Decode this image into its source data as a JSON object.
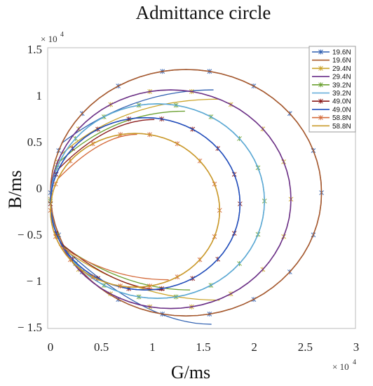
{
  "chart_data": {
    "type": "line",
    "title": "Admittance circle",
    "xlabel": "G/ms",
    "ylabel": "B/ms",
    "x_exponent_label": "× 10",
    "x_exponent_power": "4",
    "y_exponent_label": "× 10",
    "y_exponent_power": "4",
    "xlim": [
      0,
      30000
    ],
    "ylim": [
      -15000,
      15000
    ],
    "x_ticks": [
      0,
      5000,
      10000,
      15000,
      20000,
      25000,
      30000
    ],
    "x_tick_labels": [
      "0",
      "0.5",
      "1",
      "1.5",
      "2",
      "2.5",
      "3"
    ],
    "y_ticks": [
      15000,
      10000,
      5000,
      0,
      -5000,
      -10000,
      -15000
    ],
    "y_tick_labels": [
      "1.5",
      "1",
      "0.5",
      "0",
      "− 0.5",
      "− 1",
      "− 1.5"
    ],
    "grid": false,
    "legend_position": "top-right",
    "series": [
      {
        "name": "19.6N",
        "color": "#2f5fb0",
        "marker": "*",
        "circle": {
          "cx": 13300,
          "cy": -500,
          "r": 13300
        },
        "chord_top": [
          16000,
          10600
        ],
        "chord_bottom": [
          15800,
          -14700
        ]
      },
      {
        "name": "19.6N",
        "color": "#a8582a",
        "marker": "",
        "circle": {
          "cx": 13300,
          "cy": -500,
          "r": 13300
        }
      },
      {
        "name": "29.4N",
        "color": "#c9a227",
        "marker": "*",
        "circle": {
          "cx": 11800,
          "cy": -1200,
          "r": 11800
        },
        "chord_top": [
          16600,
          9600
        ],
        "chord_bottom": [
          16600,
          -12100
        ]
      },
      {
        "name": "29.4N",
        "color": "#6a2f8a",
        "marker": "",
        "circle": {
          "cx": 11800,
          "cy": -1200,
          "r": 11800
        }
      },
      {
        "name": "39.2N",
        "color": "#6aa030",
        "marker": "*",
        "circle": {
          "cx": 10500,
          "cy": -1400,
          "r": 10500
        },
        "chord_top": [
          13200,
          8300
        ],
        "chord_bottom": [
          13700,
          -11000
        ]
      },
      {
        "name": "39.2N",
        "color": "#5aa8d8",
        "marker": "",
        "circle": {
          "cx": 10500,
          "cy": -1400,
          "r": 10500
        }
      },
      {
        "name": "49.0N",
        "color": "#8a1a1a",
        "marker": "*",
        "circle": {
          "cx": 9300,
          "cy": -1700,
          "r": 9300
        },
        "chord_top": [
          10200,
          7400
        ],
        "chord_bottom": [
          11200,
          -11000
        ]
      },
      {
        "name": "49.0N",
        "color": "#1f4fbf",
        "marker": "",
        "circle": {
          "cx": 9300,
          "cy": -1700,
          "r": 9300
        }
      },
      {
        "name": "58.8N",
        "color": "#d46a3a",
        "marker": "*",
        "circle": {
          "cx": 8300,
          "cy": -2400,
          "r": 8300
        },
        "chord_top": [
          8500,
          5800
        ],
        "chord_bottom": [
          11600,
          -9900
        ]
      },
      {
        "name": "58.8N",
        "color": "#c99a2a",
        "marker": "",
        "circle": {
          "cx": 8300,
          "cy": -2400,
          "r": 8300
        }
      }
    ]
  }
}
